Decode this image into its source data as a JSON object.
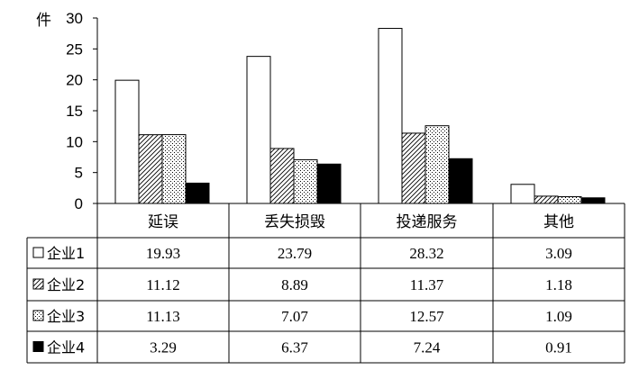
{
  "chart_data": {
    "type": "bar",
    "ylabel": "件",
    "ylim": [
      0,
      30
    ],
    "yticks": [
      "0",
      "5",
      "10",
      "15",
      "20",
      "25",
      "30"
    ],
    "categories": [
      "延误",
      "丢失损毁",
      "投递服务",
      "其他"
    ],
    "series": [
      {
        "name": "企业1",
        "values": [
          19.93,
          23.79,
          28.32,
          3.09
        ],
        "fill": "white"
      },
      {
        "name": "企业2",
        "values": [
          11.12,
          8.89,
          11.37,
          1.18
        ],
        "fill": "diagonal-hatch"
      },
      {
        "name": "企业3",
        "values": [
          11.13,
          7.07,
          12.57,
          1.09
        ],
        "fill": "dotted"
      },
      {
        "name": "企业4",
        "values": [
          3.29,
          6.37,
          7.24,
          0.91
        ],
        "fill": "black"
      }
    ],
    "value_labels": [
      [
        "19.93",
        "23.79",
        "28.32",
        "3.09"
      ],
      [
        "11.12",
        "8.89",
        "11.37",
        "1.18"
      ],
      [
        "11.13",
        "7.07",
        "12.57",
        "1.09"
      ],
      [
        "3.29",
        "6.37",
        "7.24",
        "0.91"
      ]
    ],
    "data_table": true,
    "grid": false
  }
}
